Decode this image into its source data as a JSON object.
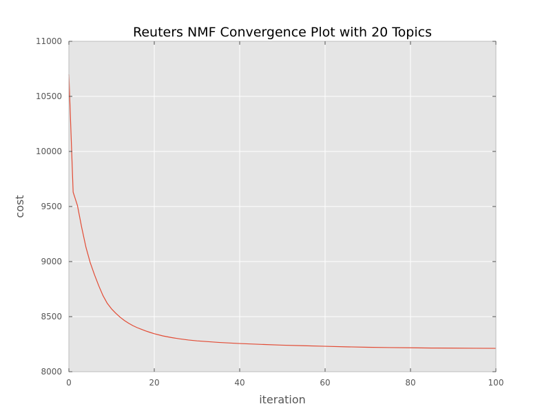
{
  "chart_data": {
    "type": "line",
    "title": "Reuters NMF Convergence Plot with 20 Topics",
    "xlabel": "iteration",
    "ylabel": "cost",
    "xlim": [
      0,
      100
    ],
    "ylim": [
      8000,
      11000
    ],
    "xticks": [
      0,
      20,
      40,
      60,
      80,
      100
    ],
    "yticks": [
      8000,
      8500,
      9000,
      9500,
      10000,
      10500,
      11000
    ],
    "grid": true,
    "plot_background": "#e5e5e5",
    "grid_color": "#ffffff",
    "series": [
      {
        "color": "#e24a33",
        "x": [
          0,
          1,
          2,
          3,
          4,
          5,
          6,
          7,
          8,
          9,
          10,
          11,
          12,
          13,
          14,
          15,
          16,
          17,
          18,
          19,
          20,
          22,
          24,
          26,
          28,
          30,
          35,
          40,
          45,
          50,
          55,
          60,
          65,
          70,
          75,
          80,
          85,
          90,
          95,
          100
        ],
        "y": [
          10700,
          9630,
          9510,
          9310,
          9130,
          8990,
          8880,
          8780,
          8690,
          8620,
          8570,
          8530,
          8495,
          8465,
          8440,
          8418,
          8400,
          8385,
          8370,
          8357,
          8345,
          8325,
          8310,
          8298,
          8288,
          8280,
          8266,
          8256,
          8248,
          8241,
          8236,
          8231,
          8226,
          8222,
          8219,
          8217,
          8215,
          8214,
          8213,
          8212
        ]
      }
    ]
  }
}
